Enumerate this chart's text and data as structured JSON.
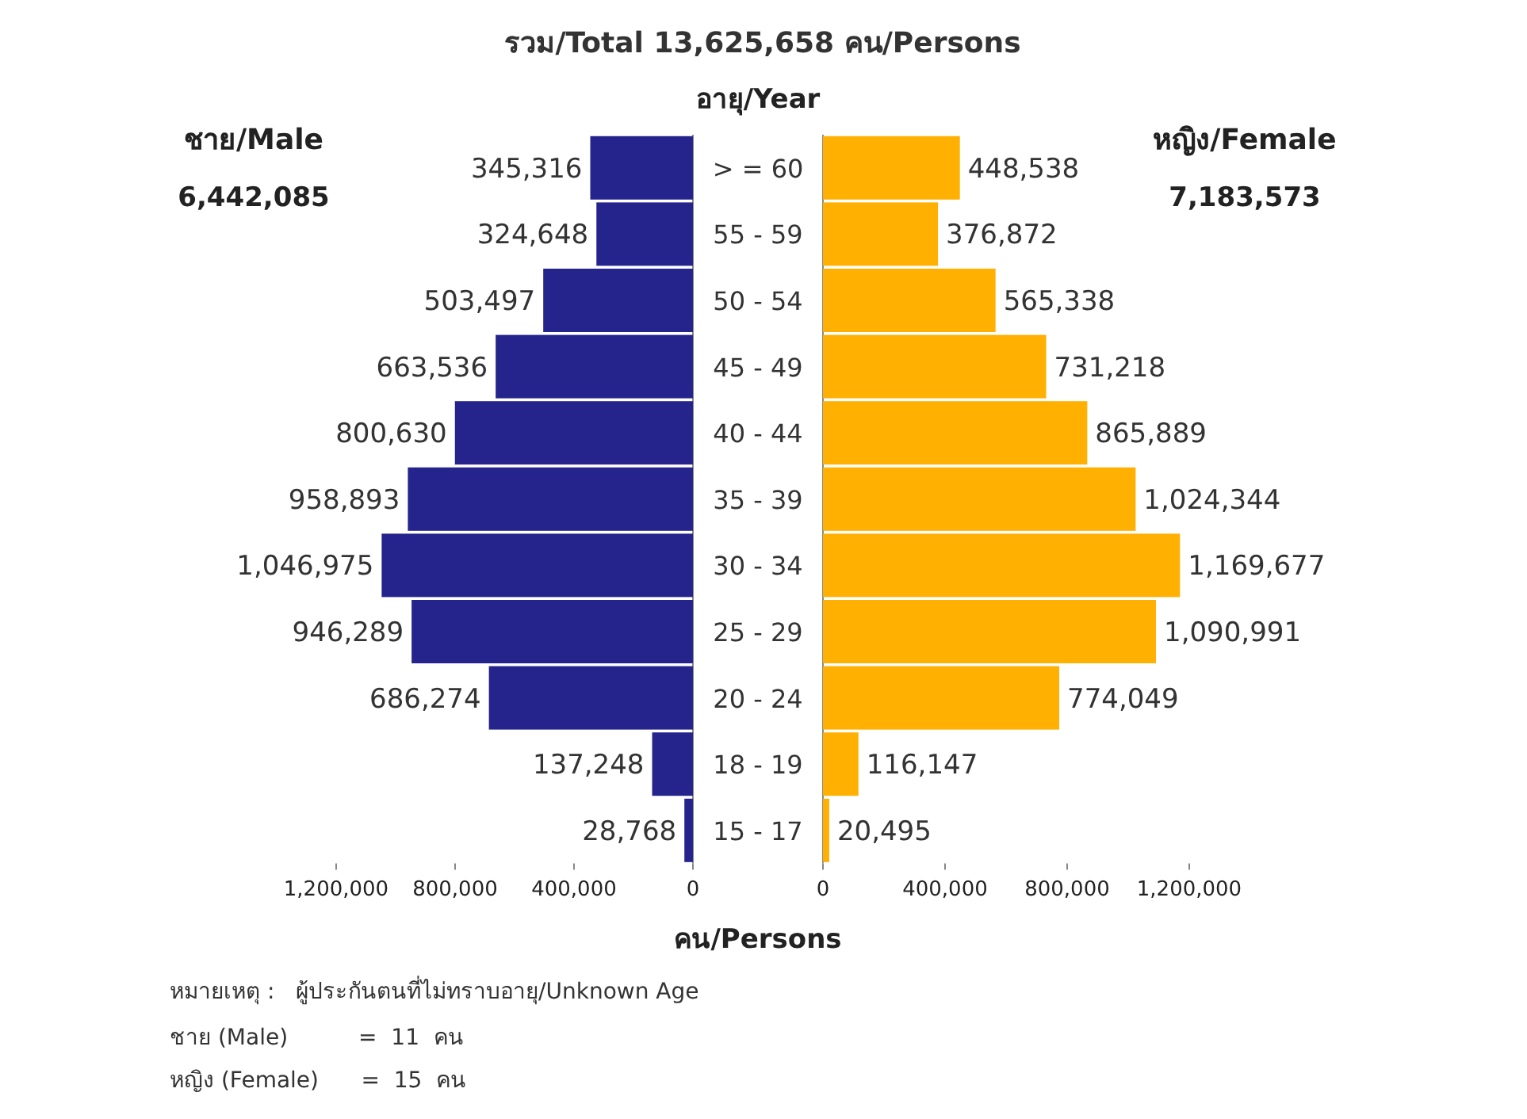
{
  "chart_data": [
    {
      "type": "bar",
      "orientation": "horizontal",
      "title": "ชาย/Male",
      "subtitle": "6,442,085",
      "xlabel": "คน/Persons",
      "annotations": [
        "รวม/Total 13,625,658 คน/Persons"
      ],
      "categories": [
        null,
        null,
        null,
        null,
        null,
        null,
        null,
        null,
        null,
        null,
        null
      ],
      "series": [
        {
          "color": "#24248c",
          "values": [
            345316,
            324648,
            503497,
            663536,
            800630,
            958893,
            1046975,
            946289,
            686274,
            137248,
            28768
          ],
          "value_labels": [
            "345,316",
            "324,648",
            "503,497",
            "663,536",
            "800,630",
            "958,893",
            "1,046,975",
            "946,289",
            "686,274",
            "137,248",
            "28,768"
          ]
        }
      ],
      "xlim": [
        1200000,
        0
      ],
      "xticks": [
        {
          "value": 1200000,
          "label": "1,200,000"
        },
        {
          "value": 800000,
          "label": "800,000"
        },
        {
          "value": 400000,
          "label": "400,000"
        },
        0
      ],
      "tick_labels": "x",
      "data_labels": true
    },
    {
      "type": "bar",
      "orientation": "horizontal",
      "title": "หญิง/Female",
      "subtitle": "7,183,573",
      "ylabel": "อายุ/Year",
      "annotations": [
        "หมายเหตุ :   ผู้ประกันตนที่ไม่ทราบอายุ/Unknown Age",
        "ชาย (Male)          =  11  คน",
        "หญิง (Female)      =  15  คน"
      ],
      "categories": [
        "> = 60",
        "55 - 59",
        "50 - 54",
        "45 - 49",
        "40 - 44",
        "35 - 39",
        "30 - 34",
        "25 - 29",
        "20 - 24",
        "18 - 19",
        "15 - 17"
      ],
      "series": [
        {
          "color": "#ffb000",
          "values": [
            448538,
            376872,
            565338,
            731218,
            865889,
            1024344,
            1169677,
            1090991,
            774049,
            116147,
            20495
          ],
          "value_labels": [
            "448,538",
            "376,872",
            "565,338",
            "731,218",
            "865,889",
            "1,024,344",
            "1,169,677",
            "1,090,991",
            "774,049",
            "116,147",
            "20,495"
          ]
        }
      ],
      "xlim": [
        0,
        1200000
      ],
      "xticks": [
        0,
        {
          "value": 400000,
          "label": "400,000"
        },
        {
          "value": 800000,
          "label": "800,000"
        },
        {
          "value": 1200000,
          "label": "1,200,000"
        }
      ],
      "data_labels": true
    }
  ]
}
